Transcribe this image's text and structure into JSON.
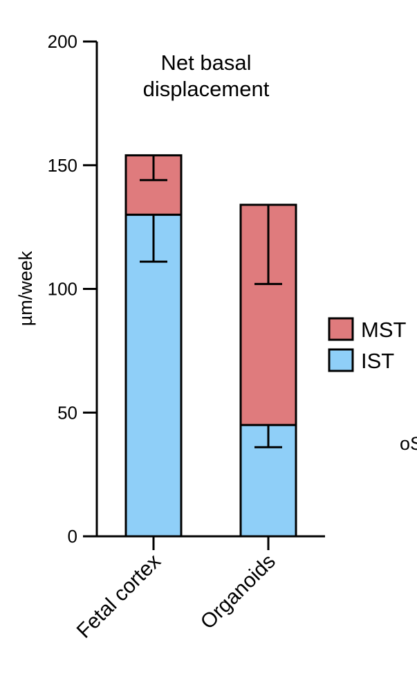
{
  "chart_data": {
    "type": "bar",
    "stacked": true,
    "title_lines": [
      "Net basal",
      "displacement"
    ],
    "ylabel": "µm/week",
    "xlabel": "",
    "ylim": [
      0,
      200
    ],
    "yticks": [
      0,
      50,
      100,
      150,
      200
    ],
    "categories": [
      "Fetal cortex",
      "Organoids"
    ],
    "series": [
      {
        "name": "IST",
        "color": "#8fcff8",
        "values": [
          130,
          45
        ],
        "error_low": [
          111,
          36
        ]
      },
      {
        "name": "MST",
        "color": "#df7b7d",
        "values": [
          24,
          89
        ],
        "error_low": [
          144,
          102
        ]
      }
    ],
    "totals": [
      154,
      134
    ],
    "legend": {
      "position": "right",
      "order": [
        "MST",
        "IST"
      ]
    },
    "edge_text": "oS"
  }
}
